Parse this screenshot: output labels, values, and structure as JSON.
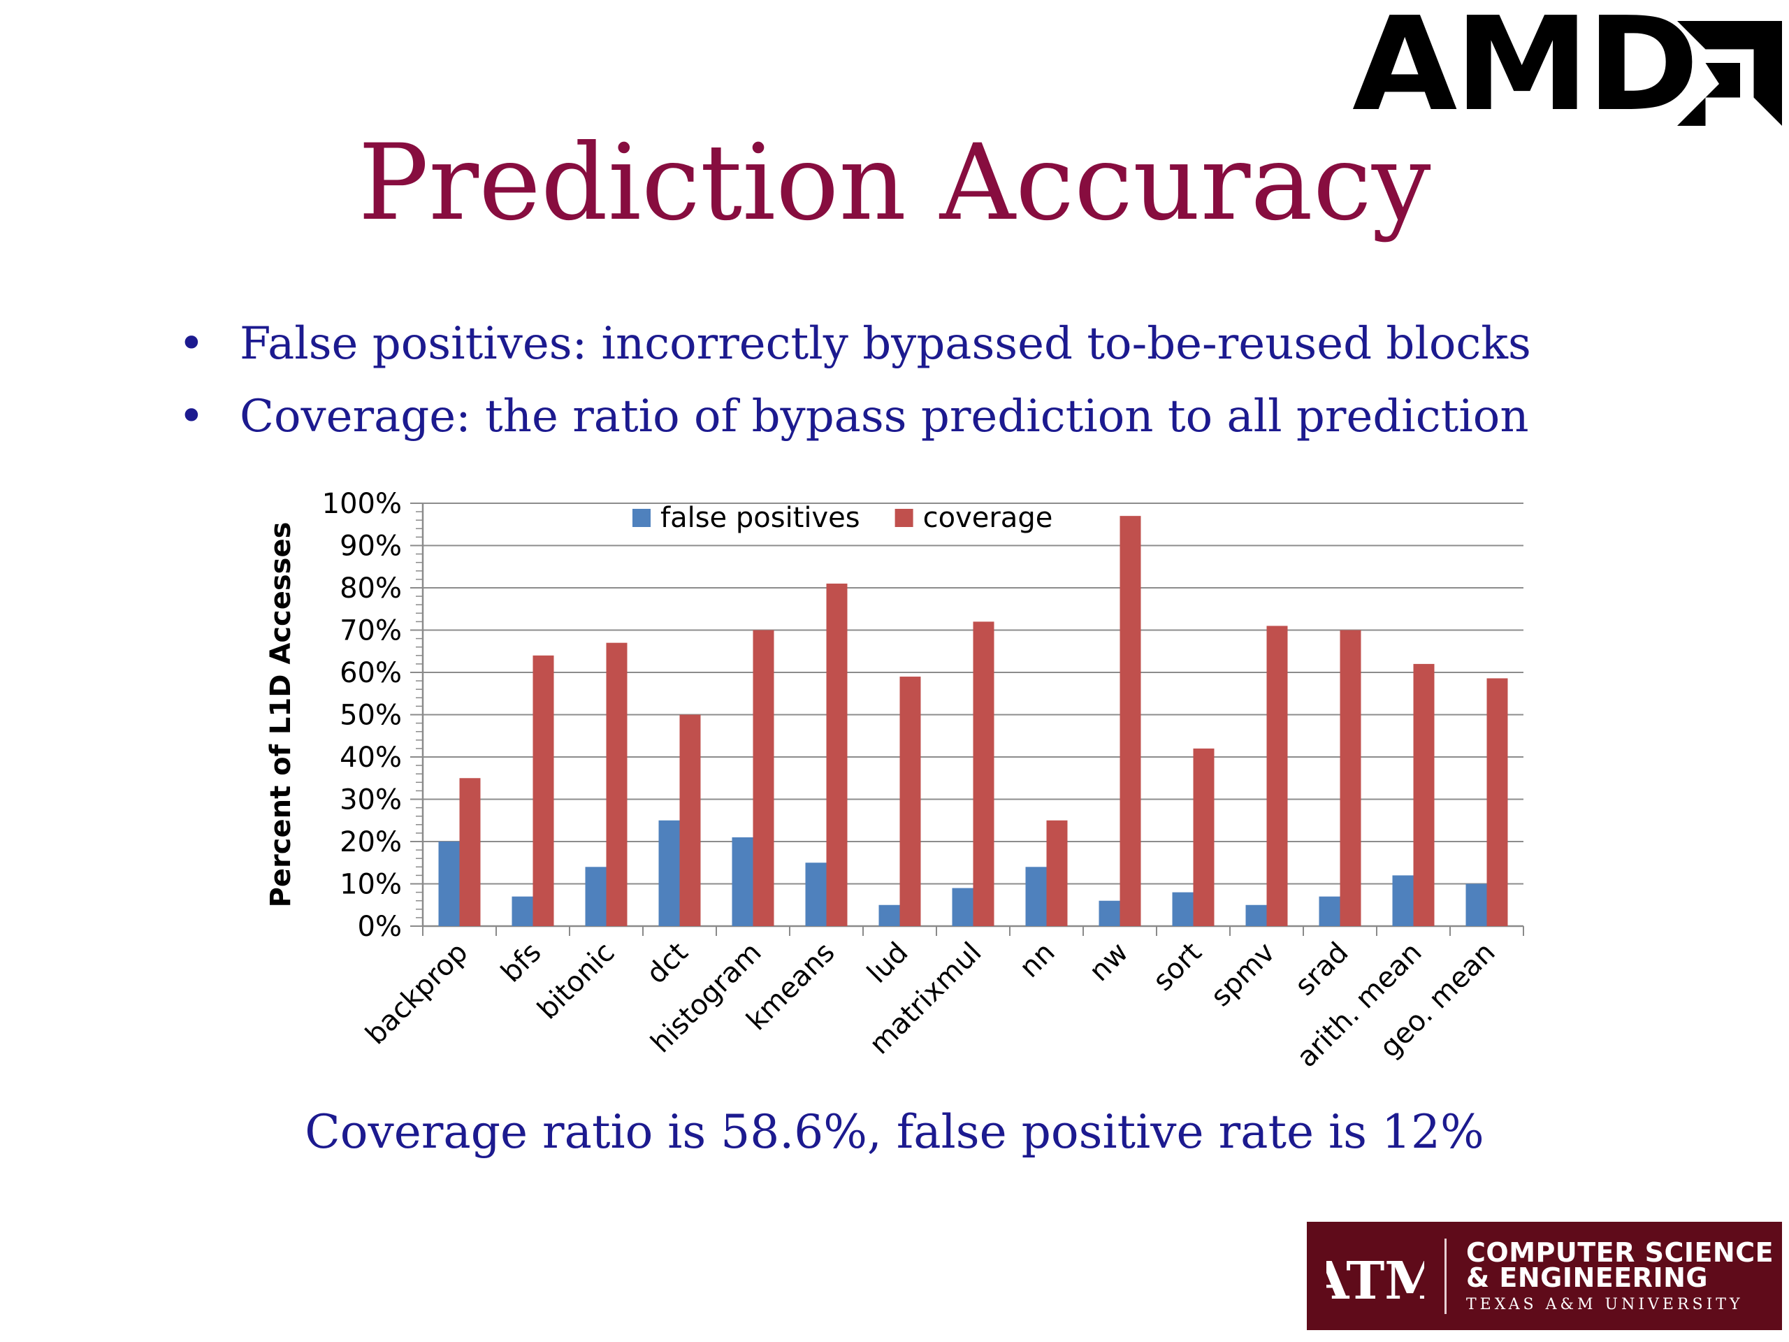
{
  "logo": {
    "amd_text": "AMD"
  },
  "slide": {
    "title": "Prediction Accuracy",
    "bullets": [
      "False positives: incorrectly bypassed to-be-reused blocks",
      "Coverage: the ratio of bypass prediction to all prediction"
    ],
    "summary": "Coverage ratio is 58.6%, false positive rate is 12%"
  },
  "footer": {
    "mark_text": "ATM",
    "line1": "COMPUTER SCIENCE",
    "line2": "& ENGINEERING",
    "line3": "TEXAS A&M UNIVERSITY"
  },
  "colors": {
    "title": "#870d3f",
    "text": "#1c1a8f",
    "false_positives": "#4f81bd",
    "coverage": "#c0504d",
    "tamu_maroon": "#5f0b1a"
  },
  "chart_data": {
    "type": "bar",
    "ylabel": "Percent of L1D Accesses",
    "ylim": [
      0,
      100
    ],
    "yticks": [
      "0%",
      "10%",
      "20%",
      "30%",
      "40%",
      "50%",
      "60%",
      "70%",
      "80%",
      "90%",
      "100%"
    ],
    "legend_position": "top-center",
    "grid": true,
    "categories": [
      "backprop",
      "bfs",
      "bitonic",
      "dct",
      "histogram",
      "kmeans",
      "lud",
      "matrixmul",
      "nn",
      "nw",
      "sort",
      "spmv",
      "srad",
      "arith. mean",
      "geo. mean"
    ],
    "series": [
      {
        "name": "false positives",
        "color": "#4f81bd",
        "values": [
          20,
          7,
          14,
          25,
          21,
          15,
          5,
          9,
          14,
          6,
          8,
          5,
          7,
          12,
          10
        ]
      },
      {
        "name": "coverage",
        "color": "#c0504d",
        "values": [
          35,
          64,
          67,
          50,
          70,
          81,
          59,
          72,
          25,
          97,
          42,
          71,
          70,
          62,
          58.6
        ]
      }
    ]
  }
}
